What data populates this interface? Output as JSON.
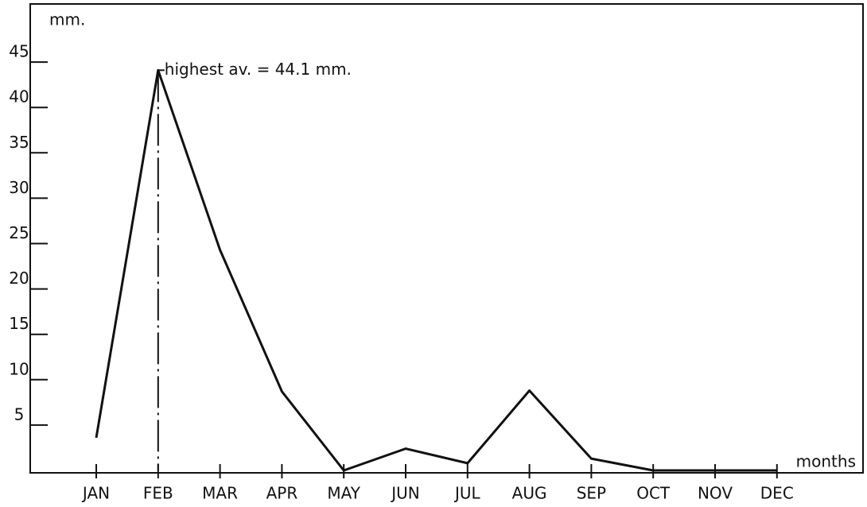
{
  "chart_data": {
    "type": "line",
    "y_label": "mm.",
    "x_label": "months",
    "annotation": "highest  av. = 44.1 mm.",
    "categories": [
      "JAN",
      "FEB",
      "MAR",
      "APR",
      "MAY",
      "JUN",
      "JUL",
      "AUG",
      "SEP",
      "OCT",
      "NOV",
      "DEC"
    ],
    "values": [
      3.6,
      44.1,
      24.3,
      8.7,
      0,
      2.4,
      0.8,
      8.8,
      1.3,
      0,
      0,
      0
    ],
    "color": "#111111",
    "ylim": [
      0,
      51.4
    ],
    "yticks": [
      5,
      10,
      15,
      20,
      25,
      30,
      35,
      40,
      45
    ],
    "highlight_index": 1
  }
}
